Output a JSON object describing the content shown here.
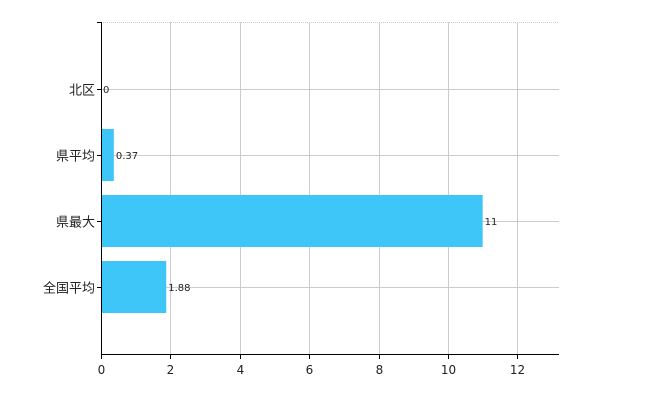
{
  "chart_data": {
    "type": "bar",
    "orientation": "horizontal",
    "title": "",
    "xlabel": "",
    "ylabel": "",
    "categories": [
      "北区",
      "県平均",
      "県最大",
      "全国平均"
    ],
    "values": [
      0,
      0.37,
      11,
      1.88
    ],
    "value_labels": [
      "0",
      "0.37",
      "11",
      "1.88"
    ],
    "xlim": [
      0,
      13.2
    ],
    "xticks": [
      0,
      2,
      4,
      6,
      8,
      10,
      12
    ],
    "xtick_labels": [
      "0",
      "2",
      "4",
      "6",
      "8",
      "10",
      "12"
    ],
    "grid": true,
    "legend": "none",
    "bar_color": "#3ec6f8",
    "grid_color": "#cccccc",
    "axis_color": "#000000"
  }
}
